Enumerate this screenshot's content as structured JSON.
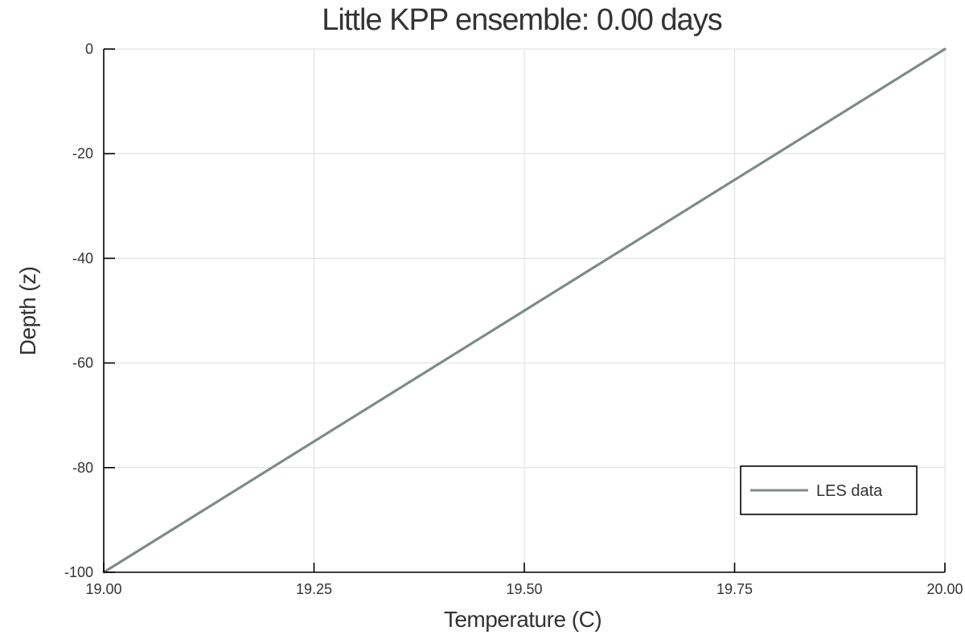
{
  "chart_data": {
    "type": "line",
    "title": "Little KPP ensemble: 0.00 days",
    "xlabel": "Temperature (C)",
    "ylabel": "Depth (z)",
    "xlim": [
      19.0,
      20.0
    ],
    "ylim": [
      -100,
      0
    ],
    "xticks": [
      19.0,
      19.25,
      19.5,
      19.75,
      20.0
    ],
    "xtick_labels": [
      "19.00",
      "19.25",
      "19.50",
      "19.75",
      "20.00"
    ],
    "yticks": [
      0,
      -20,
      -40,
      -60,
      -80,
      -100
    ],
    "ytick_labels": [
      "0",
      "-20",
      "-40",
      "-60",
      "-80",
      "-100"
    ],
    "grid": true,
    "legend_position": "bottom-right",
    "series": [
      {
        "name": "LES data",
        "color": "#7f8a89",
        "x": [
          19.0,
          20.0
        ],
        "y": [
          -100,
          0
        ]
      }
    ]
  }
}
